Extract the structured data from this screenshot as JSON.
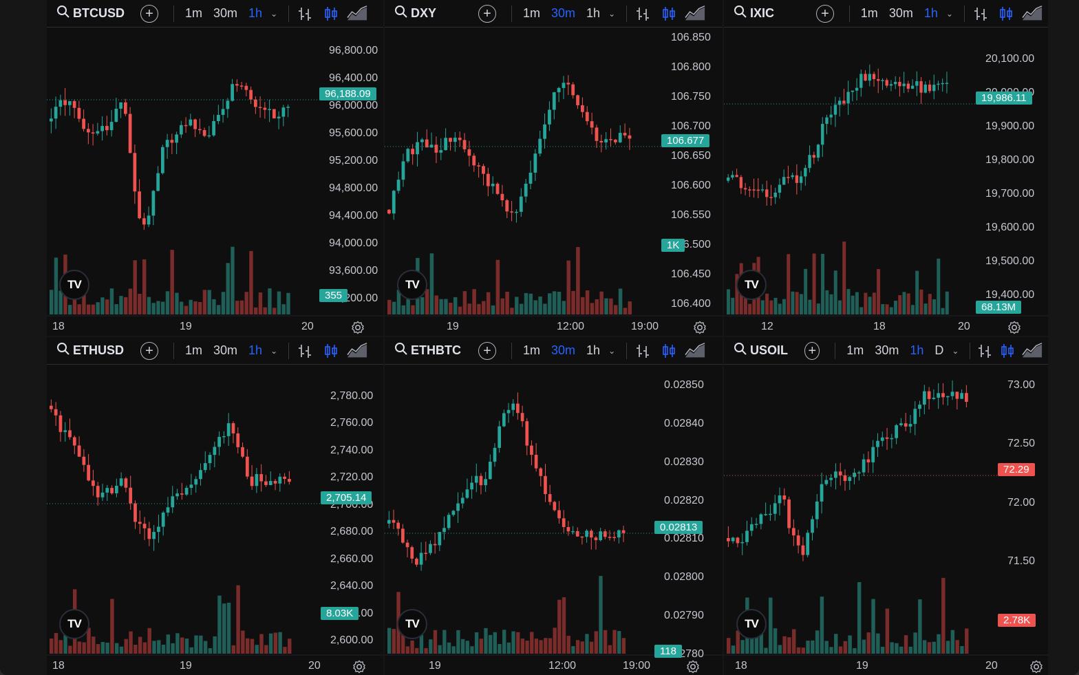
{
  "colors": {
    "up": "#26a69a",
    "down": "#ef5350",
    "accent": "#2962ff",
    "background": "#0f0f0f"
  },
  "toolbar_common": {
    "timeframes": [
      "1m",
      "30m",
      "1h"
    ],
    "add_label": "+",
    "search_icon": "search-icon",
    "compare_icon": "plus-circle-icon",
    "bar_style_icon": "bars-icon",
    "candle_style_icon": "candles-icon",
    "area_style_icon": "area-icon",
    "chevron_icon": "chevron-down-icon",
    "logo_text": "TV",
    "settings_icon": "gear-icon"
  },
  "panels": [
    {
      "symbol": "BTCUSD",
      "active_tf": "1h",
      "extra_tf": "",
      "price_labels": [
        "96,800.00",
        "96,400.00",
        "96,000.00",
        "95,600.00",
        "95,200.00",
        "94,800.00",
        "94,400.00",
        "94,000.00",
        "93,600.00",
        "93,200.00"
      ],
      "current_price": "96,188.09",
      "current_color": "#26a69a",
      "volume_label": "355",
      "volume_color": "#26a69a",
      "time_labels": [
        "18",
        "19",
        "20"
      ]
    },
    {
      "symbol": "DXY",
      "active_tf": "30m",
      "extra_tf": "",
      "price_labels": [
        "106.850",
        "106.800",
        "106.750",
        "106.700",
        "106.650",
        "106.600",
        "106.550",
        "106.500",
        "106.450",
        "106.400"
      ],
      "current_price": "106.677",
      "current_color": "#26a69a",
      "volume_label": "1K",
      "volume_color": "#26a69a",
      "time_labels": [
        "19",
        "12:00",
        "19:00"
      ]
    },
    {
      "symbol": "IXIC",
      "active_tf": "1h",
      "extra_tf": "",
      "price_labels": [
        "20,100.00",
        "20,000.00",
        "19,900.00",
        "19,800.00",
        "19,700.00",
        "19,600.00",
        "19,500.00",
        "19,400.00"
      ],
      "current_price": "19,986.11",
      "current_color": "#26a69a",
      "volume_label": "68.13M",
      "volume_color": "#26a69a",
      "time_labels": [
        "12",
        "18",
        "20"
      ]
    },
    {
      "symbol": "ETHUSD",
      "active_tf": "1h",
      "extra_tf": "",
      "price_labels": [
        "2,780.00",
        "2,760.00",
        "2,740.00",
        "2,720.00",
        "2,700.00",
        "2,680.00",
        "2,660.00",
        "2,640.00",
        "2,620.00",
        "2,600.00"
      ],
      "current_price": "2,705.14",
      "current_color": "#26a69a",
      "volume_label": "8.03K",
      "volume_color": "#26a69a",
      "time_labels": [
        "18",
        "19",
        "20"
      ]
    },
    {
      "symbol": "ETHBTC",
      "active_tf": "30m",
      "extra_tf": "",
      "price_labels": [
        "0.02850",
        "0.02840",
        "0.02830",
        "0.02820",
        "0.02810",
        "0.02800",
        "0.02790",
        "0.02780"
      ],
      "current_price": "0.02813",
      "current_color": "#26a69a",
      "volume_label": "118",
      "volume_color": "#26a69a",
      "time_labels": [
        "19",
        "12:00",
        "19:00"
      ]
    },
    {
      "symbol": "USOIL",
      "active_tf": "1h",
      "extra_tf": "D",
      "price_labels": [
        "73.00",
        "72.50",
        "72.00",
        "71.50"
      ],
      "current_price": "72.29",
      "current_color": "#ef5350",
      "volume_label": "2.78K",
      "volume_color": "#ef5350",
      "time_labels": [
        "18",
        "19",
        "20"
      ]
    }
  ]
}
